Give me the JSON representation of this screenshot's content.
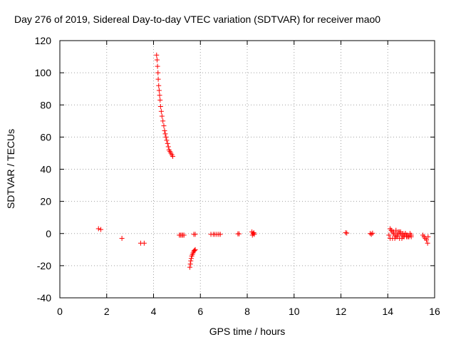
{
  "chart_data": {
    "type": "scatter",
    "title": "Day 276 of 2019, Sidereal Day-to-day VTEC variation (SDTVAR) for receiver mao0",
    "xlabel": "GPS time / hours",
    "ylabel": "SDTVAR / TECUs",
    "xlim": [
      0,
      16
    ],
    "ylim": [
      -40,
      120
    ],
    "xticks": [
      0,
      2,
      4,
      6,
      8,
      10,
      12,
      14,
      16
    ],
    "yticks": [
      -40,
      -20,
      0,
      20,
      40,
      60,
      80,
      100,
      120
    ],
    "grid": true,
    "marker": "+",
    "color": "#ff0000",
    "series": [
      {
        "name": "SDTVAR",
        "x": [
          1.65,
          1.75,
          2.65,
          3.45,
          3.6,
          4.13,
          4.15,
          4.17,
          4.19,
          4.2,
          4.22,
          4.24,
          4.26,
          4.28,
          4.3,
          4.33,
          4.36,
          4.4,
          4.44,
          4.47,
          4.5,
          4.53,
          4.56,
          4.6,
          4.63,
          4.66,
          4.7,
          4.74,
          4.78,
          4.82,
          5.1,
          5.15,
          5.2,
          5.25,
          5.3,
          5.55,
          5.57,
          5.59,
          5.61,
          5.63,
          5.66,
          5.69,
          5.72,
          5.75,
          5.78,
          5.72,
          5.78,
          6.45,
          6.55,
          6.62,
          6.7,
          6.78,
          6.85,
          7.6,
          7.65,
          8.2,
          8.25,
          8.3,
          8.28,
          8.22,
          12.2,
          12.25,
          13.25,
          13.3,
          13.35,
          14.05,
          14.1,
          14.15,
          14.2,
          14.25,
          14.3,
          14.35,
          14.4,
          14.45,
          14.5,
          14.55,
          14.6,
          14.65,
          14.7,
          14.75,
          14.8,
          14.85,
          14.9,
          14.95,
          15.0,
          14.1,
          14.2,
          14.3,
          14.4,
          14.5,
          14.6,
          14.7,
          14.8,
          14.9,
          15.0,
          14.15,
          14.25,
          14.35,
          14.45,
          14.55,
          14.65,
          14.75,
          14.85,
          14.95,
          15.5,
          15.55,
          15.6,
          15.65,
          15.7,
          15.72
        ],
        "y": [
          3,
          2.5,
          -3,
          -6,
          -6,
          111,
          108,
          104,
          100,
          96,
          92,
          89,
          86,
          83,
          79,
          76,
          73,
          70,
          67,
          64,
          62,
          60,
          58,
          56,
          54,
          52,
          51,
          50,
          49,
          48,
          -1,
          -1,
          -1,
          -1,
          -1,
          -21,
          -19,
          -17,
          -15.5,
          -14,
          -13,
          -12,
          -11,
          -10.5,
          -10,
          -0.5,
          -0.5,
          -0.5,
          -0.5,
          -0.5,
          -0.5,
          -0.5,
          -0.5,
          -0.2,
          -0.2,
          1,
          0,
          -0.5,
          0.5,
          -1,
          0.5,
          0.3,
          0,
          -0.5,
          0.2,
          -1,
          3,
          2,
          1,
          0,
          -1,
          -2,
          -1,
          0,
          1,
          0,
          -1,
          -2,
          -1,
          0,
          -1,
          -2,
          -2,
          -1,
          -1,
          -3,
          -3,
          -3,
          -2,
          -3,
          -3,
          -2,
          -2,
          -2,
          -2,
          2,
          1,
          2,
          1,
          1,
          0,
          0,
          -1,
          0,
          -1,
          -2,
          -3,
          -4,
          -6,
          -2
        ]
      }
    ]
  }
}
